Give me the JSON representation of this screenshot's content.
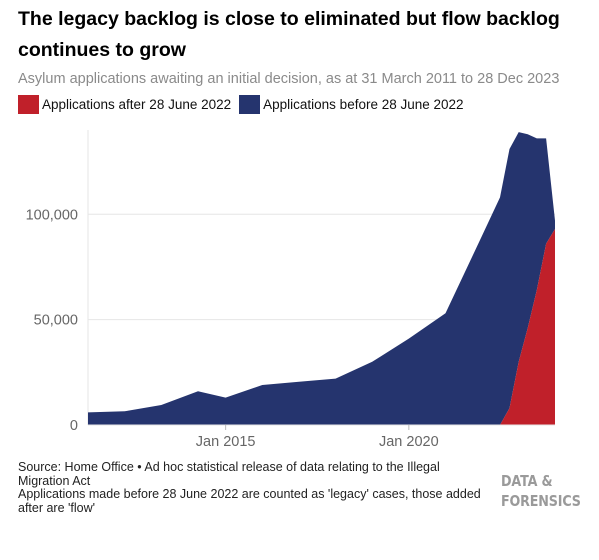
{
  "header": {
    "title": "The legacy backlog is close to eliminated but flow backlog continues to grow",
    "subtitle": "Asylum applications awaiting an initial decision, as at 31 March 2011 to 28 Dec 2023"
  },
  "legend": [
    {
      "label": "Applications after 28 June 2022",
      "color": "#c0202a"
    },
    {
      "label": "Applications before 28 June 2022",
      "color": "#25346e"
    }
  ],
  "footer": {
    "source": "Source: Home Office • Ad hoc statistical release of data relating to the Illegal Migration Act",
    "note": "Applications made before 28 June 2022 are counted as 'legacy' cases, those added after are 'flow'",
    "logo_line1": "DATA &",
    "logo_line2": "FORENSICS"
  },
  "chart_data": {
    "type": "area",
    "stacked": true,
    "x_type": "date",
    "xlim": [
      "2011-03-31",
      "2023-12-28"
    ],
    "ylim": [
      0,
      140000
    ],
    "y_ticks": [
      0,
      50000,
      100000
    ],
    "y_tick_labels": [
      "0",
      "50,000",
      "100,000"
    ],
    "x_ticks": [
      "2015-01-01",
      "2020-01-01"
    ],
    "x_tick_labels": [
      "Jan 2015",
      "Jan 2020"
    ],
    "grid": true,
    "legend_position": "top-left",
    "series": [
      {
        "name": "Applications after 28 June 2022",
        "color": "#c0202a",
        "points": [
          [
            "2022-06-28",
            0
          ],
          [
            "2022-09-30",
            8000
          ],
          [
            "2022-12-31",
            30000
          ],
          [
            "2023-03-31",
            46000
          ],
          [
            "2023-06-30",
            64000
          ],
          [
            "2023-09-30",
            86000
          ],
          [
            "2023-12-28",
            93000
          ]
        ]
      },
      {
        "name": "Applications before 28 June 2022",
        "color": "#25346e",
        "points": [
          [
            "2011-03-31",
            6000
          ],
          [
            "2012-03-31",
            6500
          ],
          [
            "2013-03-31",
            9500
          ],
          [
            "2014-03-31",
            16000
          ],
          [
            "2015-01-01",
            13000
          ],
          [
            "2016-01-01",
            19000
          ],
          [
            "2017-01-01",
            20500
          ],
          [
            "2018-01-01",
            22000
          ],
          [
            "2019-01-01",
            30000
          ],
          [
            "2020-01-01",
            41000
          ],
          [
            "2021-01-01",
            53000
          ],
          [
            "2022-01-01",
            90000
          ],
          [
            "2022-06-28",
            108000
          ],
          [
            "2022-09-30",
            123000
          ],
          [
            "2022-12-31",
            109000
          ],
          [
            "2023-03-31",
            92000
          ],
          [
            "2023-06-30",
            72000
          ],
          [
            "2023-09-30",
            50000
          ],
          [
            "2023-12-28",
            4000
          ]
        ]
      }
    ]
  }
}
